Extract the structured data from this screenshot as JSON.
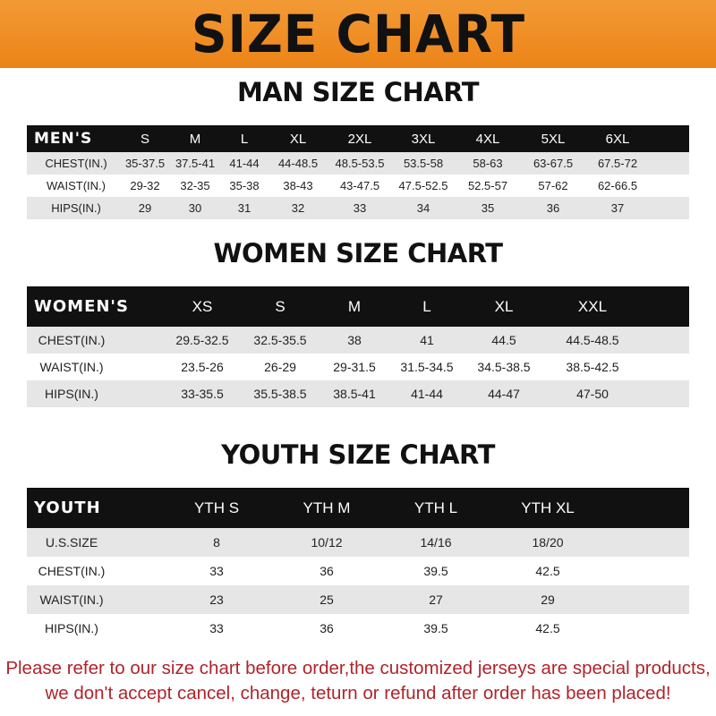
{
  "banner_title": "SIZE CHART",
  "men": {
    "title": "MAN SIZE CHART",
    "header": [
      "MEN'S",
      "S",
      "M",
      "L",
      "XL",
      "2XL",
      "3XL",
      "4XL",
      "5XL",
      "6XL"
    ],
    "rows": [
      [
        "CHEST(IN.)",
        "35-37.5",
        "37.5-41",
        "41-44",
        "44-48.5",
        "48.5-53.5",
        "53.5-58",
        "58-63",
        "63-67.5",
        "67.5-72"
      ],
      [
        "WAIST(IN.)",
        "29-32",
        "32-35",
        "35-38",
        "38-43",
        "43-47.5",
        "47.5-52.5",
        "52.5-57",
        "57-62",
        "62-66.5"
      ],
      [
        "HIPS(IN.)",
        "29",
        "30",
        "31",
        "32",
        "33",
        "34",
        "35",
        "36",
        "37"
      ]
    ]
  },
  "women": {
    "title": "WOMEN SIZE CHART",
    "header": [
      "WOMEN'S",
      "XS",
      "S",
      "M",
      "L",
      "XL",
      "XXL"
    ],
    "rows": [
      [
        "CHEST(IN.)",
        "29.5-32.5",
        "32.5-35.5",
        "38",
        "41",
        "44.5",
        "44.5-48.5"
      ],
      [
        "WAIST(IN.)",
        "23.5-26",
        "26-29",
        "29-31.5",
        "31.5-34.5",
        "34.5-38.5",
        "38.5-42.5"
      ],
      [
        "HIPS(IN.)",
        "33-35.5",
        "35.5-38.5",
        "38.5-41",
        "41-44",
        "44-47",
        "47-50"
      ]
    ]
  },
  "youth": {
    "title": "YOUTH SIZE CHART",
    "header": [
      "YOUTH",
      "YTH S",
      "YTH M",
      "YTH L",
      "YTH XL"
    ],
    "rows": [
      [
        "U.S.SIZE",
        "8",
        "10/12",
        "14/16",
        "18/20"
      ],
      [
        "CHEST(IN.)",
        "33",
        "36",
        "39.5",
        "42.5"
      ],
      [
        "WAIST(IN.)",
        "23",
        "25",
        "27",
        "29"
      ],
      [
        "HIPS(IN.)",
        "33",
        "36",
        "39.5",
        "42.5"
      ]
    ]
  },
  "notice": {
    "line1": "Please refer to our size chart before order,the customized jerseys are special products,",
    "line2": "we don't accept cancel, change, teturn or refund after order has been placed!"
  },
  "colors": {
    "banner": "#ec8418",
    "header_row": "#111111",
    "stripe": "#e6e6e6",
    "notice": "#b0242a"
  }
}
